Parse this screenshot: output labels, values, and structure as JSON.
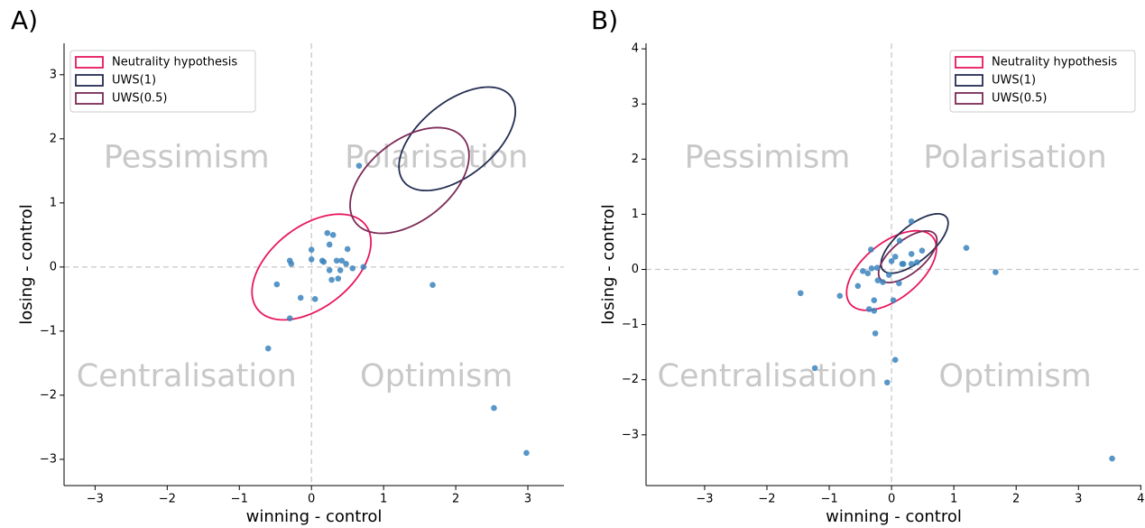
{
  "chart_data": [
    {
      "type": "scatter",
      "panel_label": "A)",
      "x_label": "winning - control",
      "y_label": "losing - control",
      "quadrant_labels": [
        "Pessimism",
        "Polarisation",
        "Centralisation",
        "Optimism"
      ],
      "xlim": [
        -3.43,
        3.5
      ],
      "ylim": [
        -3.41,
        3.49
      ],
      "xticks": [
        {
          "value": -3,
          "label": "−3"
        },
        {
          "value": -2,
          "label": "−2"
        },
        {
          "value": -1,
          "label": "−1"
        },
        0,
        1,
        2,
        3
      ],
      "yticks": [
        {
          "value": -3,
          "label": "−3"
        },
        {
          "value": -2,
          "label": "−2"
        },
        {
          "value": -1,
          "label": "−1"
        },
        0,
        1,
        2,
        3
      ],
      "legend_position": "upper left",
      "points": {
        "color": "#3b84bd",
        "x": [
          0.66,
          1.68,
          -0.6,
          2.53,
          2.98,
          -0.3,
          -0.28,
          -0.48,
          -0.3,
          -0.15,
          0.05,
          0.0,
          0.0,
          0.15,
          0.17,
          0.22,
          0.3,
          0.25,
          0.25,
          0.28,
          0.37,
          0.35,
          0.42,
          0.5,
          0.48,
          0.4,
          0.57,
          0.72
        ],
        "y": [
          1.58,
          -0.28,
          -1.27,
          -2.2,
          -2.9,
          0.1,
          0.05,
          -0.27,
          -0.8,
          -0.48,
          -0.5,
          0.27,
          0.12,
          0.1,
          0.08,
          0.53,
          0.5,
          0.35,
          -0.05,
          -0.2,
          -0.18,
          0.1,
          0.1,
          0.28,
          0.05,
          -0.05,
          -0.02,
          0.0
        ]
      },
      "ellipses": [
        {
          "name": "Neutrality hypothesis",
          "color": "#e8175d",
          "cx": 0,
          "cy": 0,
          "rx": 1.0,
          "ry": 0.6,
          "angle": 45
        },
        {
          "name": "UWS(1)",
          "color": "#242e52",
          "cx": 2.02,
          "cy": 2.0,
          "rx": 1.0,
          "ry": 0.55,
          "angle": 45
        },
        {
          "name": "UWS(0.5)",
          "color": "#7b2a57",
          "cx": 1.36,
          "cy": 1.35,
          "rx": 1.0,
          "ry": 0.6,
          "angle": 45
        }
      ]
    },
    {
      "type": "scatter",
      "panel_label": "B)",
      "x_label": "winning - control",
      "y_label": "losing - control",
      "quadrant_labels": [
        "Pessimism",
        "Polarisation",
        "Centralisation",
        "Optimism"
      ],
      "xlim": [
        -3.94,
        4.01
      ],
      "ylim": [
        -3.92,
        4.1
      ],
      "xticks": [
        {
          "value": -3,
          "label": "−3"
        },
        {
          "value": -2,
          "label": "−2"
        },
        {
          "value": -1,
          "label": "−1"
        },
        0,
        1,
        2,
        3,
        4
      ],
      "yticks": [
        {
          "value": -3,
          "label": "−3"
        },
        {
          "value": -2,
          "label": "−2"
        },
        {
          "value": -1,
          "label": "−1"
        },
        0,
        1,
        2,
        3,
        4
      ],
      "legend_position": "upper right",
      "points": {
        "color": "#3b84bd",
        "x": [
          -1.46,
          -1.23,
          3.54,
          1.67,
          1.2,
          -0.07,
          0.06,
          -0.26,
          -0.28,
          -0.36,
          -0.83,
          -0.54,
          -0.46,
          -0.38,
          -0.32,
          -0.33,
          -0.23,
          -0.22,
          -0.14,
          -0.28,
          -0.04,
          0.03,
          0.12,
          0.0,
          0.06,
          0.13,
          0.19,
          0.32,
          0.32,
          0.41,
          0.49,
          0.32,
          0.17
        ],
        "y": [
          -0.43,
          -1.79,
          -3.43,
          -0.05,
          0.39,
          -2.05,
          -1.64,
          -1.16,
          -0.75,
          -0.72,
          -0.48,
          -0.3,
          -0.03,
          -0.07,
          0.02,
          0.36,
          0.03,
          -0.2,
          -0.23,
          -0.56,
          -0.1,
          -0.56,
          -0.25,
          0.15,
          0.23,
          0.52,
          0.1,
          0.1,
          0.28,
          0.13,
          0.34,
          0.87,
          0.1
        ]
      },
      "ellipses": [
        {
          "name": "Neutrality hypothesis",
          "color": "#e8175d",
          "cx": 0,
          "cy": -0.02,
          "rx": 0.9,
          "ry": 0.48,
          "angle": 45
        },
        {
          "name": "UWS(1)",
          "color": "#242e52",
          "cx": 0.37,
          "cy": 0.47,
          "rx": 0.7,
          "ry": 0.3,
          "angle": 45
        },
        {
          "name": "UWS(0.5)",
          "color": "#7b2a57",
          "cx": 0.26,
          "cy": 0.23,
          "rx": 0.6,
          "ry": 0.28,
          "angle": 45
        }
      ]
    }
  ]
}
